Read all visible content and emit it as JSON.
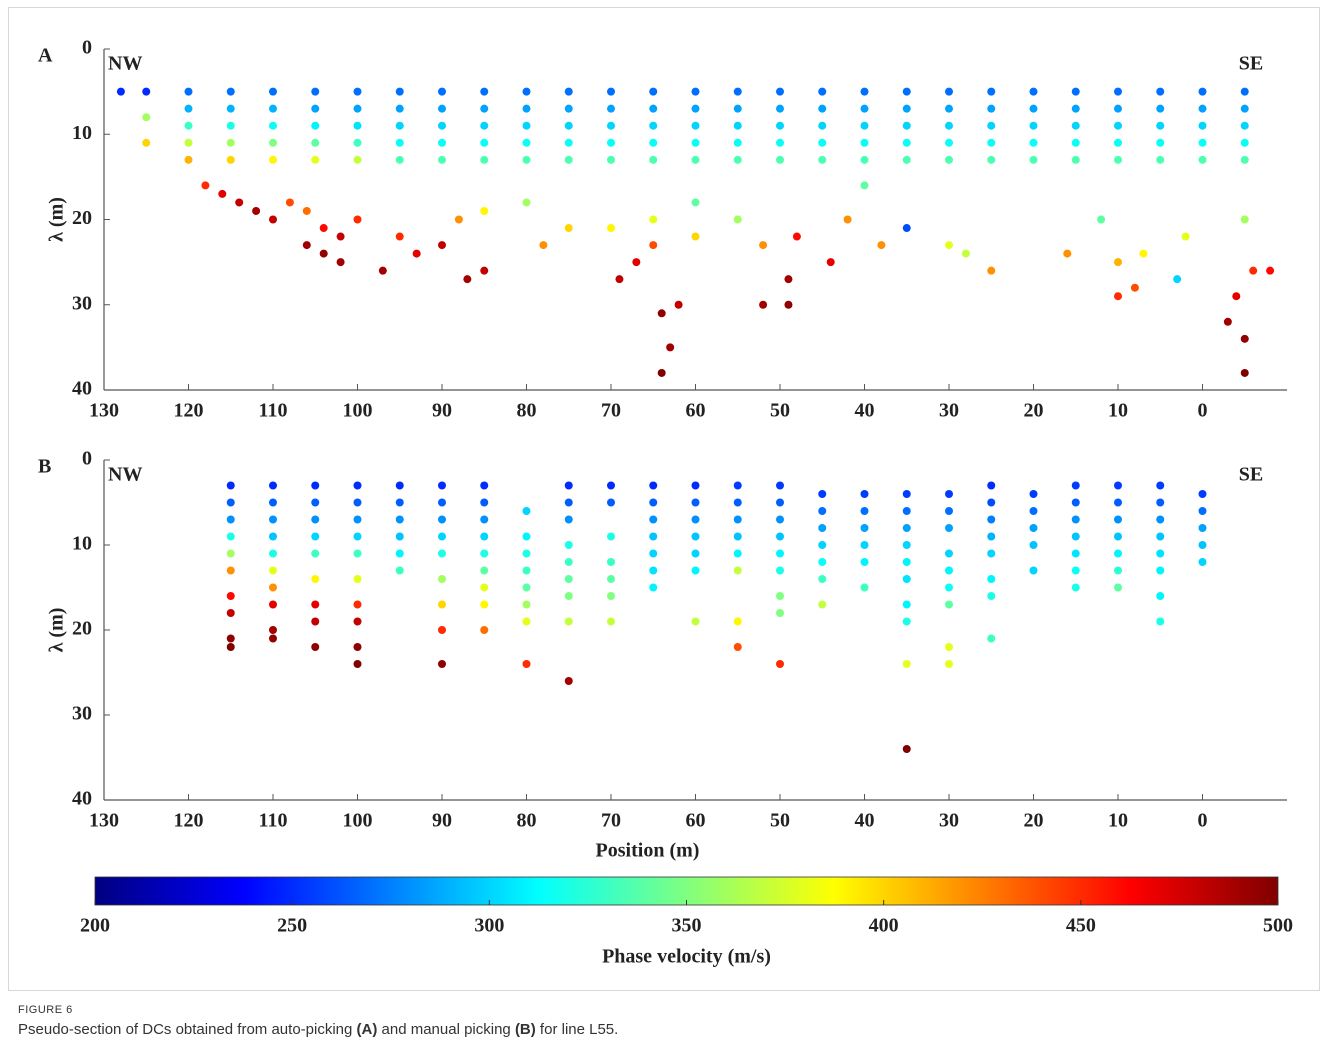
{
  "chart_data": [
    {
      "type": "scatter",
      "label": "A",
      "annotations": [
        "NW",
        "SE"
      ],
      "ylabel": "λ (m)",
      "xlim": [
        130,
        -10
      ],
      "xticks": [
        130,
        120,
        110,
        100,
        90,
        80,
        70,
        60,
        50,
        40,
        30,
        20,
        10,
        0
      ],
      "ylim": [
        0,
        40
      ],
      "yticks": [
        0,
        10,
        20,
        30,
        40
      ],
      "y_inverted": true,
      "colormap": "jet",
      "x": [
        128,
        125,
        125,
        125,
        120,
        120,
        120,
        120,
        120,
        115,
        115,
        115,
        115,
        115,
        110,
        110,
        110,
        110,
        110,
        105,
        105,
        105,
        105,
        105,
        100,
        100,
        100,
        100,
        100,
        95,
        95,
        95,
        95,
        95,
        90,
        90,
        90,
        90,
        90,
        85,
        85,
        85,
        85,
        85,
        80,
        80,
        80,
        80,
        80,
        75,
        75,
        75,
        75,
        75,
        70,
        70,
        70,
        70,
        70,
        65,
        65,
        65,
        65,
        65,
        60,
        60,
        60,
        60,
        60,
        55,
        55,
        55,
        55,
        55,
        50,
        50,
        50,
        50,
        50,
        45,
        45,
        45,
        45,
        45,
        40,
        40,
        40,
        40,
        40,
        35,
        35,
        35,
        35,
        35,
        30,
        30,
        30,
        30,
        30,
        25,
        25,
        25,
        25,
        25,
        20,
        20,
        20,
        20,
        20,
        15,
        15,
        15,
        15,
        15,
        10,
        10,
        10,
        10,
        10,
        5,
        5,
        5,
        5,
        5,
        0,
        0,
        0,
        0,
        0,
        -5,
        -5,
        -5,
        -5,
        -5,
        116,
        114,
        112,
        110,
        118,
        108,
        106,
        104,
        102,
        106,
        104,
        102,
        97,
        100,
        95,
        93,
        90,
        88,
        87,
        85,
        85,
        80,
        78,
        75,
        70,
        69,
        67,
        65,
        64,
        64,
        63,
        62,
        65,
        60,
        60,
        55,
        52,
        52,
        49,
        49,
        48,
        44,
        42,
        40,
        38,
        35,
        30,
        28,
        25,
        16,
        12,
        10,
        10,
        8,
        7,
        3,
        2,
        -3,
        -4,
        -5,
        -5,
        -6,
        -8,
        -5
      ],
      "y": [
        5,
        5,
        8,
        11,
        5,
        7,
        9,
        11,
        13,
        5,
        7,
        9,
        11,
        13,
        5,
        7,
        9,
        11,
        13,
        5,
        7,
        9,
        11,
        13,
        5,
        7,
        9,
        11,
        13,
        5,
        7,
        9,
        11,
        13,
        5,
        7,
        9,
        11,
        13,
        5,
        7,
        9,
        11,
        13,
        5,
        7,
        9,
        11,
        13,
        5,
        7,
        9,
        11,
        13,
        5,
        7,
        9,
        11,
        13,
        5,
        7,
        9,
        11,
        13,
        5,
        7,
        9,
        11,
        13,
        5,
        7,
        9,
        11,
        13,
        5,
        7,
        9,
        11,
        13,
        5,
        7,
        9,
        11,
        13,
        5,
        7,
        9,
        11,
        13,
        5,
        7,
        9,
        11,
        13,
        5,
        7,
        9,
        11,
        13,
        5,
        7,
        9,
        11,
        13,
        5,
        7,
        9,
        11,
        13,
        5,
        7,
        9,
        11,
        13,
        5,
        7,
        9,
        11,
        13,
        5,
        7,
        9,
        11,
        13,
        5,
        7,
        9,
        11,
        13,
        5,
        7,
        9,
        11,
        13,
        17,
        18,
        19,
        20,
        16,
        18,
        19,
        21,
        22,
        23,
        24,
        25,
        26,
        20,
        22,
        24,
        23,
        20,
        27,
        26,
        19,
        18,
        23,
        21,
        21,
        27,
        25,
        23,
        31,
        38,
        35,
        30,
        20,
        22,
        18,
        20,
        23,
        30,
        27,
        30,
        22,
        25,
        20,
        16,
        23,
        21,
        23,
        24,
        26,
        24,
        20,
        25,
        29,
        28,
        24,
        27,
        22,
        32,
        29,
        34,
        38,
        26,
        26,
        20
      ],
      "c": [
        250,
        250,
        360,
        400,
        270,
        290,
        330,
        370,
        410,
        270,
        290,
        320,
        360,
        400,
        270,
        290,
        315,
        350,
        390,
        270,
        285,
        310,
        340,
        380,
        270,
        285,
        305,
        330,
        370,
        270,
        285,
        300,
        315,
        335,
        270,
        285,
        300,
        315,
        335,
        270,
        285,
        300,
        315,
        335,
        270,
        285,
        300,
        315,
        335,
        270,
        285,
        300,
        315,
        335,
        270,
        285,
        300,
        315,
        335,
        270,
        285,
        300,
        315,
        335,
        270,
        285,
        300,
        315,
        335,
        270,
        285,
        300,
        315,
        335,
        270,
        285,
        300,
        315,
        335,
        270,
        285,
        300,
        315,
        335,
        270,
        285,
        300,
        315,
        335,
        270,
        285,
        300,
        315,
        335,
        270,
        285,
        300,
        315,
        335,
        270,
        285,
        300,
        315,
        335,
        270,
        285,
        300,
        315,
        335,
        270,
        285,
        300,
        315,
        335,
        270,
        285,
        300,
        315,
        335,
        270,
        285,
        300,
        315,
        335,
        270,
        285,
        300,
        315,
        335,
        270,
        285,
        300,
        315,
        335,
        470,
        480,
        490,
        480,
        450,
        440,
        430,
        460,
        480,
        490,
        495,
        490,
        490,
        450,
        450,
        470,
        480,
        420,
        490,
        480,
        390,
        360,
        420,
        400,
        390,
        480,
        470,
        440,
        495,
        500,
        490,
        480,
        380,
        400,
        340,
        360,
        420,
        490,
        490,
        495,
        460,
        470,
        420,
        340,
        420,
        260,
        380,
        370,
        420,
        420,
        340,
        410,
        450,
        440,
        390,
        300,
        380,
        490,
        470,
        495,
        500,
        450,
        460,
        360
      ]
    },
    {
      "type": "scatter",
      "label": "B",
      "annotations": [
        "NW",
        "SE"
      ],
      "ylabel": "λ (m)",
      "xlabel": "Position (m)",
      "xlim": [
        130,
        -10
      ],
      "xticks": [
        130,
        120,
        110,
        100,
        90,
        80,
        70,
        60,
        50,
        40,
        30,
        20,
        10,
        0
      ],
      "ylim": [
        0,
        40
      ],
      "yticks": [
        0,
        10,
        20,
        30,
        40
      ],
      "y_inverted": true,
      "colormap": "jet",
      "x": [
        115,
        115,
        115,
        115,
        115,
        115,
        115,
        115,
        115,
        115,
        110,
        110,
        110,
        110,
        110,
        110,
        110,
        110,
        110,
        110,
        105,
        105,
        105,
        105,
        105,
        105,
        105,
        105,
        105,
        100,
        100,
        100,
        100,
        100,
        100,
        100,
        100,
        100,
        100,
        95,
        95,
        95,
        95,
        95,
        95,
        90,
        90,
        90,
        90,
        90,
        90,
        90,
        90,
        90,
        85,
        85,
        85,
        85,
        85,
        85,
        85,
        85,
        85,
        80,
        80,
        80,
        80,
        80,
        80,
        80,
        80,
        75,
        75,
        75,
        75,
        75,
        75,
        75,
        75,
        75,
        70,
        70,
        70,
        70,
        70,
        70,
        70,
        65,
        65,
        65,
        65,
        65,
        65,
        65,
        60,
        60,
        60,
        60,
        60,
        60,
        60,
        55,
        55,
        55,
        55,
        55,
        55,
        55,
        55,
        50,
        50,
        50,
        50,
        50,
        50,
        50,
        50,
        50,
        45,
        45,
        45,
        45,
        45,
        45,
        45,
        40,
        40,
        40,
        40,
        40,
        40,
        35,
        35,
        35,
        35,
        35,
        35,
        35,
        35,
        35,
        35,
        30,
        30,
        30,
        30,
        30,
        30,
        30,
        30,
        30,
        25,
        25,
        25,
        25,
        25,
        25,
        25,
        25,
        20,
        20,
        20,
        20,
        20,
        15,
        15,
        15,
        15,
        15,
        15,
        15,
        10,
        10,
        10,
        10,
        10,
        10,
        10,
        5,
        5,
        5,
        5,
        5,
        5,
        5,
        5,
        0,
        0,
        0,
        0,
        0
      ],
      "y": [
        3,
        5,
        7,
        9,
        11,
        13,
        16,
        18,
        21,
        22,
        3,
        5,
        7,
        9,
        11,
        13,
        15,
        17,
        20,
        21,
        3,
        5,
        7,
        9,
        11,
        14,
        17,
        19,
        22,
        3,
        5,
        7,
        9,
        11,
        14,
        17,
        19,
        22,
        24,
        3,
        5,
        7,
        9,
        11,
        13,
        3,
        5,
        7,
        9,
        11,
        14,
        17,
        20,
        24,
        3,
        5,
        7,
        9,
        11,
        13,
        15,
        17,
        20,
        6,
        9,
        11,
        13,
        15,
        17,
        19,
        24,
        3,
        5,
        7,
        10,
        12,
        14,
        16,
        19,
        26,
        3,
        5,
        9,
        12,
        14,
        16,
        19,
        3,
        5,
        7,
        9,
        11,
        13,
        15,
        3,
        5,
        7,
        9,
        11,
        13,
        19,
        3,
        5,
        7,
        9,
        11,
        13,
        19,
        22,
        3,
        5,
        7,
        9,
        11,
        13,
        16,
        18,
        24,
        4,
        6,
        8,
        10,
        12,
        14,
        17,
        4,
        6,
        8,
        10,
        12,
        15,
        4,
        6,
        8,
        10,
        12,
        14,
        17,
        19,
        24,
        34,
        4,
        6,
        8,
        11,
        13,
        15,
        17,
        22,
        24,
        3,
        5,
        7,
        9,
        11,
        14,
        16,
        21,
        4,
        6,
        8,
        10,
        13,
        3,
        5,
        7,
        9,
        11,
        13,
        15,
        3,
        5,
        7,
        9,
        11,
        13,
        15,
        3,
        5,
        7,
        9,
        11,
        13,
        16,
        19,
        4,
        6,
        8,
        10,
        12
      ],
      "c": [
        250,
        265,
        280,
        320,
        360,
        420,
        460,
        480,
        495,
        500,
        250,
        265,
        280,
        295,
        320,
        380,
        420,
        470,
        490,
        495,
        250,
        265,
        280,
        300,
        330,
        390,
        470,
        480,
        495,
        250,
        265,
        280,
        300,
        330,
        380,
        450,
        480,
        495,
        500,
        250,
        265,
        280,
        295,
        310,
        330,
        250,
        265,
        280,
        300,
        320,
        360,
        400,
        450,
        495,
        250,
        265,
        280,
        300,
        320,
        340,
        380,
        390,
        430,
        300,
        310,
        320,
        330,
        340,
        360,
        380,
        450,
        250,
        265,
        280,
        320,
        330,
        340,
        350,
        370,
        490,
        250,
        265,
        320,
        330,
        340,
        350,
        370,
        250,
        265,
        280,
        295,
        300,
        305,
        310,
        250,
        265,
        280,
        295,
        300,
        310,
        370,
        255,
        265,
        280,
        295,
        310,
        370,
        390,
        440,
        255,
        265,
        280,
        295,
        310,
        320,
        350,
        350,
        450,
        255,
        270,
        285,
        300,
        315,
        330,
        370,
        255,
        270,
        285,
        300,
        310,
        330,
        255,
        270,
        285,
        300,
        310,
        305,
        310,
        320,
        380,
        500,
        255,
        270,
        285,
        300,
        310,
        315,
        340,
        380,
        380,
        250,
        260,
        275,
        290,
        300,
        310,
        320,
        330,
        255,
        270,
        285,
        295,
        300,
        255,
        265,
        280,
        295,
        305,
        315,
        320,
        255,
        265,
        280,
        295,
        310,
        325,
        340,
        255,
        265,
        280,
        295,
        305,
        310,
        310,
        320,
        255,
        270,
        285,
        295,
        300
      ]
    }
  ],
  "colorbar": {
    "clim": [
      200,
      500
    ],
    "cticks": [
      200,
      250,
      300,
      350,
      400,
      450,
      500
    ],
    "label": "Phase velocity (m/s)",
    "colormap": "jet"
  },
  "caption": {
    "label": "FIGURE 6",
    "parts": [
      "Pseudo-section of DCs obtained from auto-picking ",
      "(A)",
      " and manual picking ",
      "(B)",
      " for line L55."
    ]
  }
}
